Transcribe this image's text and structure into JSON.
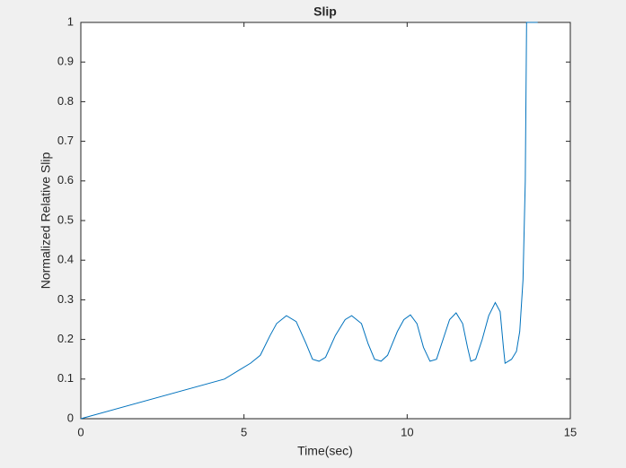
{
  "chart_data": {
    "type": "line",
    "title": "Slip",
    "xlabel": "Time(sec)",
    "ylabel": "Normalized Relative Slip",
    "x": [
      0,
      4.4,
      4.8,
      5.2,
      5.5,
      5.8,
      6.0,
      6.3,
      6.6,
      6.9,
      7.1,
      7.3,
      7.5,
      7.8,
      8.1,
      8.3,
      8.6,
      8.8,
      9.0,
      9.2,
      9.4,
      9.7,
      9.9,
      10.1,
      10.3,
      10.5,
      10.7,
      10.9,
      11.1,
      11.3,
      11.5,
      11.7,
      11.85,
      11.95,
      12.1,
      12.3,
      12.5,
      12.7,
      12.85,
      12.95,
      13.0,
      13.2,
      13.35,
      13.45,
      13.55,
      13.62,
      13.66,
      14.0
    ],
    "series": [
      {
        "name": "Slip",
        "color": "#0072bd",
        "values": [
          0,
          0.1,
          0.12,
          0.14,
          0.16,
          0.21,
          0.24,
          0.26,
          0.245,
          0.19,
          0.15,
          0.145,
          0.155,
          0.21,
          0.25,
          0.26,
          0.24,
          0.19,
          0.15,
          0.145,
          0.16,
          0.22,
          0.25,
          0.262,
          0.24,
          0.18,
          0.145,
          0.15,
          0.2,
          0.25,
          0.267,
          0.24,
          0.18,
          0.145,
          0.15,
          0.2,
          0.26,
          0.293,
          0.27,
          0.18,
          0.14,
          0.15,
          0.17,
          0.22,
          0.35,
          0.6,
          1,
          1
        ]
      }
    ],
    "xlim": [
      0,
      15
    ],
    "xticks": [
      0,
      5,
      10,
      15
    ],
    "ylim": [
      0,
      1
    ],
    "yticks": [
      0,
      0.1,
      0.2,
      0.3,
      0.4,
      0.5,
      0.6,
      0.7,
      0.8,
      0.9,
      1
    ]
  }
}
